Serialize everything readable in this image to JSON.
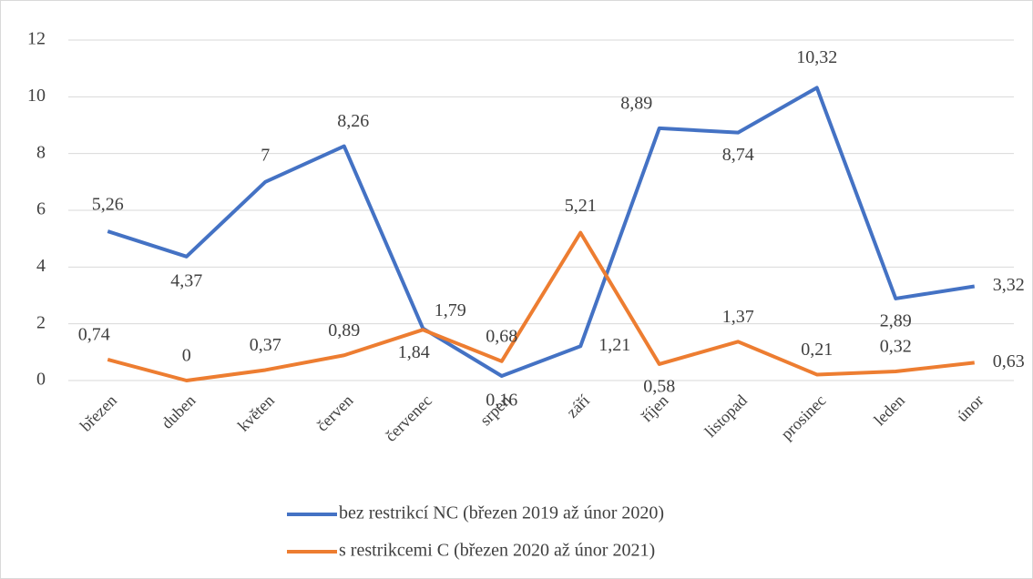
{
  "chart_data": {
    "type": "line",
    "categories": [
      "březen",
      "duben",
      "květen",
      "červen",
      "červenec",
      "srpen",
      "září",
      "říjen",
      "listopad",
      "prosinec",
      "leden",
      "únor"
    ],
    "series": [
      {
        "name": "bez restrikcí NC (březen 2019 až únor 2020)",
        "color": "#4472c4",
        "values": [
          5.26,
          4.37,
          7,
          8.26,
          1.84,
          0.16,
          1.21,
          8.89,
          8.74,
          10.32,
          2.89,
          3.32
        ],
        "value_labels": [
          "5,26",
          "4,37",
          "7",
          "8,26",
          "1,84",
          "0,16",
          "1,21",
          "8,89",
          "8,74",
          "10,32",
          "2,89",
          "3,32"
        ]
      },
      {
        "name": "s restrikcemi C (březen 2020 až únor 2021)",
        "color": "#ed7d31",
        "values": [
          0.74,
          0,
          0.37,
          0.89,
          1.79,
          0.68,
          5.21,
          0.58,
          1.37,
          0.21,
          0.32,
          0.63
        ],
        "value_labels": [
          "0,74",
          "0",
          "0,37",
          "0,89",
          "1,79",
          "0,68",
          "5,21",
          "0,58",
          "1,37",
          "0,21",
          "0,32",
          "0,63"
        ]
      }
    ],
    "ylim": [
      0,
      12
    ],
    "yticks": [
      0,
      2,
      4,
      6,
      8,
      10,
      12
    ],
    "grid": true,
    "legend": "bottom"
  }
}
